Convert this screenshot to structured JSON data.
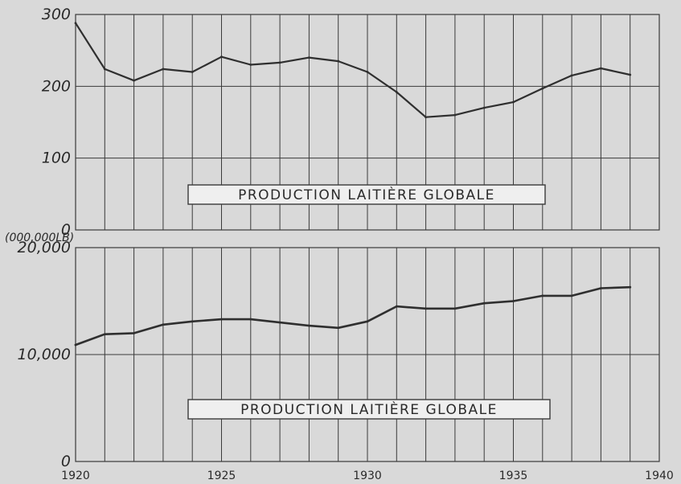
{
  "chart_data": [
    {
      "type": "line",
      "title": "PRODUCTION LAITIÈRE GLOBALE",
      "unit_label": "",
      "x": [
        1920,
        1921,
        1922,
        1923,
        1924,
        1925,
        1926,
        1927,
        1928,
        1929,
        1930,
        1931,
        1932,
        1933,
        1934,
        1935,
        1936,
        1937,
        1938,
        1939
      ],
      "series": [
        {
          "values": [
            288,
            224,
            208,
            224,
            220,
            241,
            230,
            233,
            240,
            235,
            220,
            192,
            157,
            160,
            170,
            178,
            197,
            215,
            225,
            216
          ]
        }
      ],
      "ylim": [
        0,
        300
      ],
      "xlim": [
        1920,
        1940
      ],
      "y_ticks": [
        0,
        100,
        200,
        300
      ],
      "y_tick_labels": [
        "0",
        "100",
        "200",
        "300"
      ],
      "x_ticks": [],
      "x_tick_labels": [],
      "grid": true
    },
    {
      "type": "line",
      "title": "PRODUCTION LAITIÈRE GLOBALE",
      "unit_label": "(000,000LB)",
      "x": [
        1920,
        1921,
        1922,
        1923,
        1924,
        1925,
        1926,
        1927,
        1928,
        1929,
        1930,
        1931,
        1932,
        1933,
        1934,
        1935,
        1936,
        1937,
        1938,
        1939
      ],
      "series": [
        {
          "values": [
            10900,
            11900,
            12000,
            12800,
            13100,
            13300,
            13300,
            13000,
            12700,
            12500,
            13100,
            14500,
            14300,
            14300,
            14800,
            15000,
            15500,
            15500,
            16200,
            16300
          ]
        }
      ],
      "ylim": [
        0,
        20000
      ],
      "xlim": [
        1920,
        1940
      ],
      "y_ticks": [
        0,
        10000,
        20000
      ],
      "y_tick_labels": [
        "0",
        "10,000",
        "20,000"
      ],
      "x_ticks": [
        1920,
        1925,
        1930,
        1935,
        1940
      ],
      "x_tick_labels": [
        "1920",
        "1925",
        "1930",
        "1935",
        "1940"
      ],
      "grid": true
    }
  ],
  "colors": {
    "background": "#d9d9d9",
    "line": "#2f2f2f",
    "grid": "#3a3a3a",
    "label_box": "#efefef"
  }
}
